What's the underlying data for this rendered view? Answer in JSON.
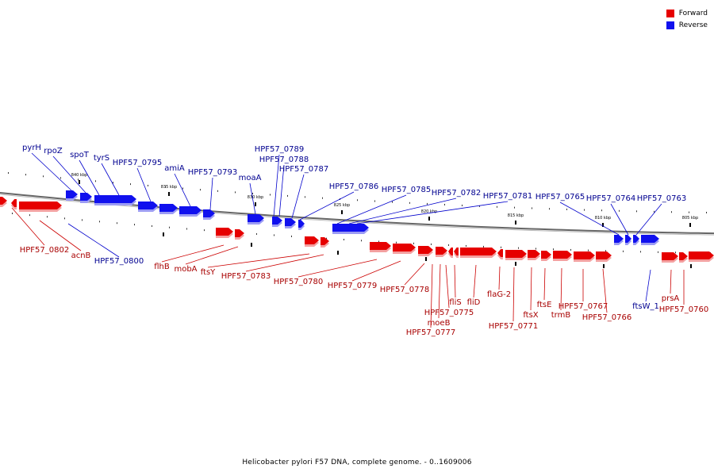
{
  "legend": [
    {
      "label": "Forward",
      "color": "#e60000"
    },
    {
      "label": "Reverse",
      "color": "#1010ee"
    }
  ],
  "caption": "Helicobacter pylori F57 DNA, complete genome. - 0..1609006",
  "colors": {
    "forward": "#e60000",
    "forward_shade": "#f4a0a0",
    "reverse": "#1010ee",
    "reverse_shade": "#9c9cf4",
    "forward_label": "#a80000",
    "reverse_label": "#000090",
    "backbone": "#666666"
  },
  "scale_labels": [
    "840 kbp",
    "835 kbp",
    "830 kbp",
    "825 kbp",
    "820 kbp",
    "815 kbp",
    "810 kbp",
    "805 kbp"
  ],
  "reverse_labels": [
    "pyrH",
    "rpoZ",
    "spoT",
    "tyrS",
    "HPF57_0795",
    "amiA",
    "HPF57_0793",
    "moaA",
    "HPF57_0789",
    "HPF57_0788",
    "HPF57_0787",
    "HPF57_0786",
    "HPF57_0785",
    "HPF57_0782",
    "HPF57_0781",
    "HPF57_0765",
    "HPF57_0764",
    "HPF57_0763",
    "HPF57_0800",
    "ftsW_1"
  ],
  "forward_labels": [
    "HPF57_0802",
    "acnB",
    "flhB",
    "mobA",
    "ftsY",
    "HPF57_0783",
    "HPF57_0780",
    "HPF57_0779",
    "HPF57_0778",
    "moeB",
    "HPF57_0777",
    "HPF57_0775",
    "fliS",
    "fliD",
    "flaG-2",
    "HPF57_0771",
    "ftsX",
    "ftsE",
    "trmB",
    "HPF57_0767",
    "HPF57_0766",
    "prsA",
    "HPF57_0760"
  ]
}
